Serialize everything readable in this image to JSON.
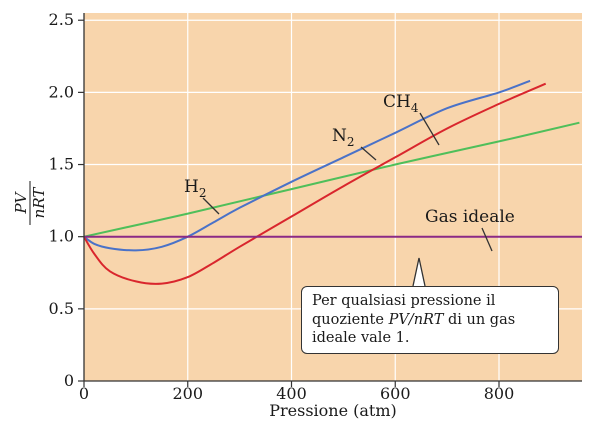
{
  "chart_data": {
    "type": "line",
    "xlabel": "Pressione (atm)",
    "ylabel": {
      "numerator": "PV",
      "denominator": "nRT"
    },
    "xlim": [
      0,
      960
    ],
    "ylim": [
      0,
      2.55
    ],
    "x_ticks": [
      0,
      200,
      400,
      600,
      800
    ],
    "y_ticks": [
      0,
      0.5,
      1.0,
      1.5,
      2.0,
      2.5
    ],
    "x_tick_labels": [
      "0",
      "200",
      "400",
      "600",
      "800"
    ],
    "y_tick_labels": [
      "0",
      "0.5",
      "1.0",
      "1.5",
      "2.0",
      "2.5"
    ],
    "grid": true,
    "series": [
      {
        "name": "H2",
        "label_main": "H",
        "label_sub": "2",
        "color": "#4fbf5a",
        "points": [
          [
            0,
            1.0
          ],
          [
            200,
            1.16
          ],
          [
            400,
            1.33
          ],
          [
            600,
            1.5
          ],
          [
            800,
            1.66
          ],
          [
            955,
            1.79
          ]
        ]
      },
      {
        "name": "N2",
        "label_main": "N",
        "label_sub": "2",
        "color": "#4a72c8",
        "points": [
          [
            0,
            1.0
          ],
          [
            20,
            0.95
          ],
          [
            50,
            0.92
          ],
          [
            100,
            0.905
          ],
          [
            150,
            0.93
          ],
          [
            200,
            1.0
          ],
          [
            250,
            1.1
          ],
          [
            300,
            1.2
          ],
          [
            400,
            1.38
          ],
          [
            500,
            1.55
          ],
          [
            600,
            1.72
          ],
          [
            700,
            1.89
          ],
          [
            800,
            2.0
          ],
          [
            860,
            2.08
          ]
        ]
      },
      {
        "name": "CH4",
        "label_main": "CH",
        "label_sub": "4",
        "color": "#d9262d",
        "points": [
          [
            0,
            1.0
          ],
          [
            20,
            0.88
          ],
          [
            50,
            0.76
          ],
          [
            100,
            0.69
          ],
          [
            150,
            0.675
          ],
          [
            200,
            0.72
          ],
          [
            250,
            0.82
          ],
          [
            300,
            0.93
          ],
          [
            400,
            1.14
          ],
          [
            500,
            1.35
          ],
          [
            600,
            1.55
          ],
          [
            700,
            1.75
          ],
          [
            800,
            1.92
          ],
          [
            890,
            2.06
          ]
        ]
      },
      {
        "name": "Gas ideale",
        "label_main": "Gas ideale",
        "label_sub": "",
        "color": "#8b2a86",
        "points": [
          [
            0,
            1.0
          ],
          [
            960,
            1.0
          ]
        ]
      }
    ],
    "annotation": {
      "line1": "Per qualsiasi pressione il",
      "line2_pre": "quoziente ",
      "line2_em": "PV/nRT",
      "line2_post": " di un gas",
      "line3": "ideale vale 1."
    },
    "colors": {
      "background": "#f8d5ac",
      "gridline": "#ffffff",
      "axis": "#333333"
    }
  }
}
